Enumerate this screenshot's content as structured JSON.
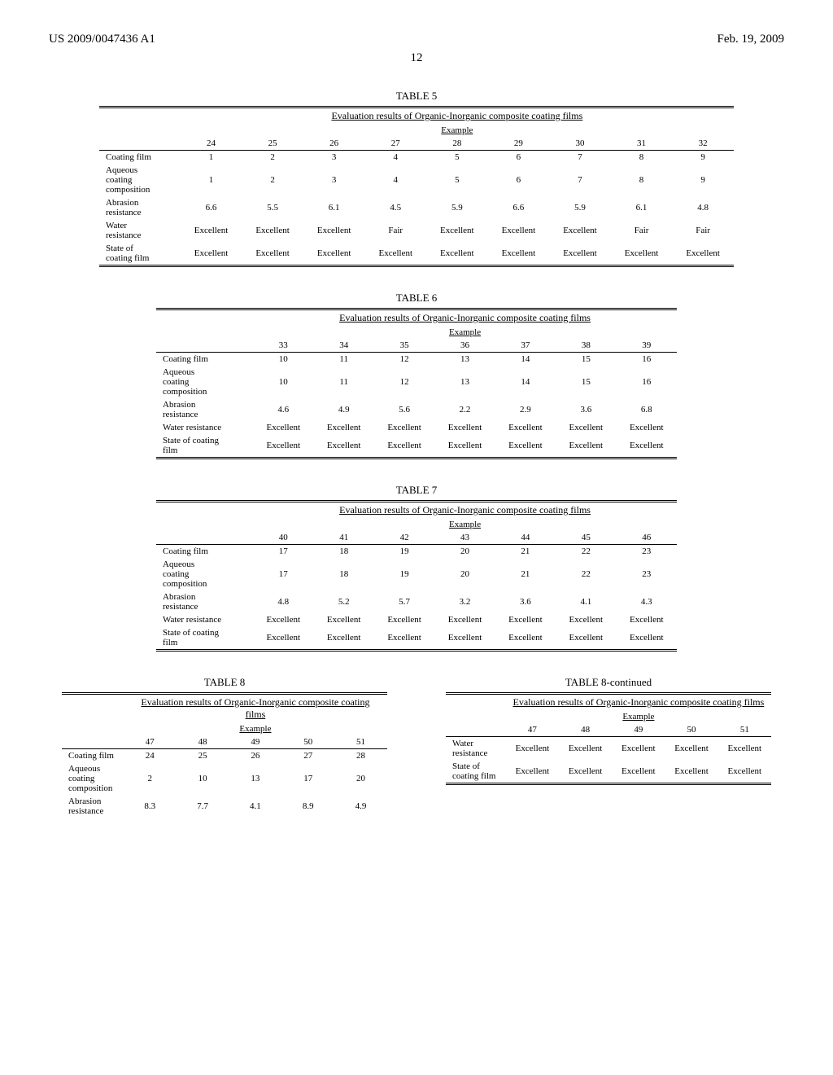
{
  "header": {
    "left": "US 2009/0047436 A1",
    "right": "Feb. 19, 2009",
    "page": "12"
  },
  "tables": {
    "t5": {
      "caption": "TABLE 5",
      "subtitle": "Evaluation results of Organic-Inorganic composite coating films",
      "group": "Example",
      "cols": [
        "24",
        "25",
        "26",
        "27",
        "28",
        "29",
        "30",
        "31",
        "32"
      ],
      "rows": [
        {
          "label": "Coating film",
          "vals": [
            "1",
            "2",
            "3",
            "4",
            "5",
            "6",
            "7",
            "8",
            "9"
          ]
        },
        {
          "label": "Aqueous\ncoating\ncomposition",
          "vals": [
            "1",
            "2",
            "3",
            "4",
            "5",
            "6",
            "7",
            "8",
            "9"
          ]
        },
        {
          "label": "Abrasion\nresistance",
          "vals": [
            "6.6",
            "5.5",
            "6.1",
            "4.5",
            "5.9",
            "6.6",
            "5.9",
            "6.1",
            "4.8"
          ]
        },
        {
          "label": "Water\nresistance",
          "vals": [
            "Excellent",
            "Excellent",
            "Excellent",
            "Fair",
            "Excellent",
            "Excellent",
            "Excellent",
            "Fair",
            "Fair"
          ]
        },
        {
          "label": "State of\ncoating film",
          "vals": [
            "Excellent",
            "Excellent",
            "Excellent",
            "Excellent",
            "Excellent",
            "Excellent",
            "Excellent",
            "Excellent",
            "Excellent"
          ]
        }
      ]
    },
    "t6": {
      "caption": "TABLE 6",
      "subtitle": "Evaluation results of Organic-Inorganic composite coating films",
      "group": "Example",
      "cols": [
        "33",
        "34",
        "35",
        "36",
        "37",
        "38",
        "39"
      ],
      "rows": [
        {
          "label": "Coating film",
          "vals": [
            "10",
            "11",
            "12",
            "13",
            "14",
            "15",
            "16"
          ]
        },
        {
          "label": "Aqueous\ncoating\ncomposition",
          "vals": [
            "10",
            "11",
            "12",
            "13",
            "14",
            "15",
            "16"
          ]
        },
        {
          "label": "Abrasion\nresistance",
          "vals": [
            "4.6",
            "4.9",
            "5.6",
            "2.2",
            "2.9",
            "3.6",
            "6.8"
          ]
        },
        {
          "label": "Water resistance",
          "vals": [
            "Excellent",
            "Excellent",
            "Excellent",
            "Excellent",
            "Excellent",
            "Excellent",
            "Excellent"
          ]
        },
        {
          "label": "State of coating\nfilm",
          "vals": [
            "Excellent",
            "Excellent",
            "Excellent",
            "Excellent",
            "Excellent",
            "Excellent",
            "Excellent"
          ]
        }
      ]
    },
    "t7": {
      "caption": "TABLE 7",
      "subtitle": "Evaluation results of Organic-Inorganic composite coating films",
      "group": "Example",
      "cols": [
        "40",
        "41",
        "42",
        "43",
        "44",
        "45",
        "46"
      ],
      "rows": [
        {
          "label": "Coating film",
          "vals": [
            "17",
            "18",
            "19",
            "20",
            "21",
            "22",
            "23"
          ]
        },
        {
          "label": "Aqueous\ncoating\ncomposition",
          "vals": [
            "17",
            "18",
            "19",
            "20",
            "21",
            "22",
            "23"
          ]
        },
        {
          "label": "Abrasion\nresistance",
          "vals": [
            "4.8",
            "5.2",
            "5.7",
            "3.2",
            "3.6",
            "4.1",
            "4.3"
          ]
        },
        {
          "label": "Water resistance",
          "vals": [
            "Excellent",
            "Excellent",
            "Excellent",
            "Excellent",
            "Excellent",
            "Excellent",
            "Excellent"
          ]
        },
        {
          "label": "State of coating\nfilm",
          "vals": [
            "Excellent",
            "Excellent",
            "Excellent",
            "Excellent",
            "Excellent",
            "Excellent",
            "Excellent"
          ]
        }
      ]
    },
    "t8a": {
      "caption": "TABLE 8",
      "subtitle": "Evaluation results of Organic-Inorganic composite coating films",
      "group": "Example",
      "cols": [
        "47",
        "48",
        "49",
        "50",
        "51"
      ],
      "rows": [
        {
          "label": "Coating film",
          "vals": [
            "24",
            "25",
            "26",
            "27",
            "28"
          ]
        },
        {
          "label": "Aqueous\ncoating\ncomposition",
          "vals": [
            "2",
            "10",
            "13",
            "17",
            "20"
          ]
        },
        {
          "label": "Abrasion\nresistance",
          "vals": [
            "8.3",
            "7.7",
            "4.1",
            "8.9",
            "4.9"
          ]
        }
      ]
    },
    "t8b": {
      "caption": "TABLE 8-continued",
      "subtitle": "Evaluation results of Organic-Inorganic composite coating films",
      "group": "Example",
      "cols": [
        "47",
        "48",
        "49",
        "50",
        "51"
      ],
      "rows": [
        {
          "label": "Water\nresistance",
          "vals": [
            "Excellent",
            "Excellent",
            "Excellent",
            "Excellent",
            "Excellent"
          ]
        },
        {
          "label": "State of\ncoating film",
          "vals": [
            "Excellent",
            "Excellent",
            "Excellent",
            "Excellent",
            "Excellent"
          ]
        }
      ]
    }
  }
}
